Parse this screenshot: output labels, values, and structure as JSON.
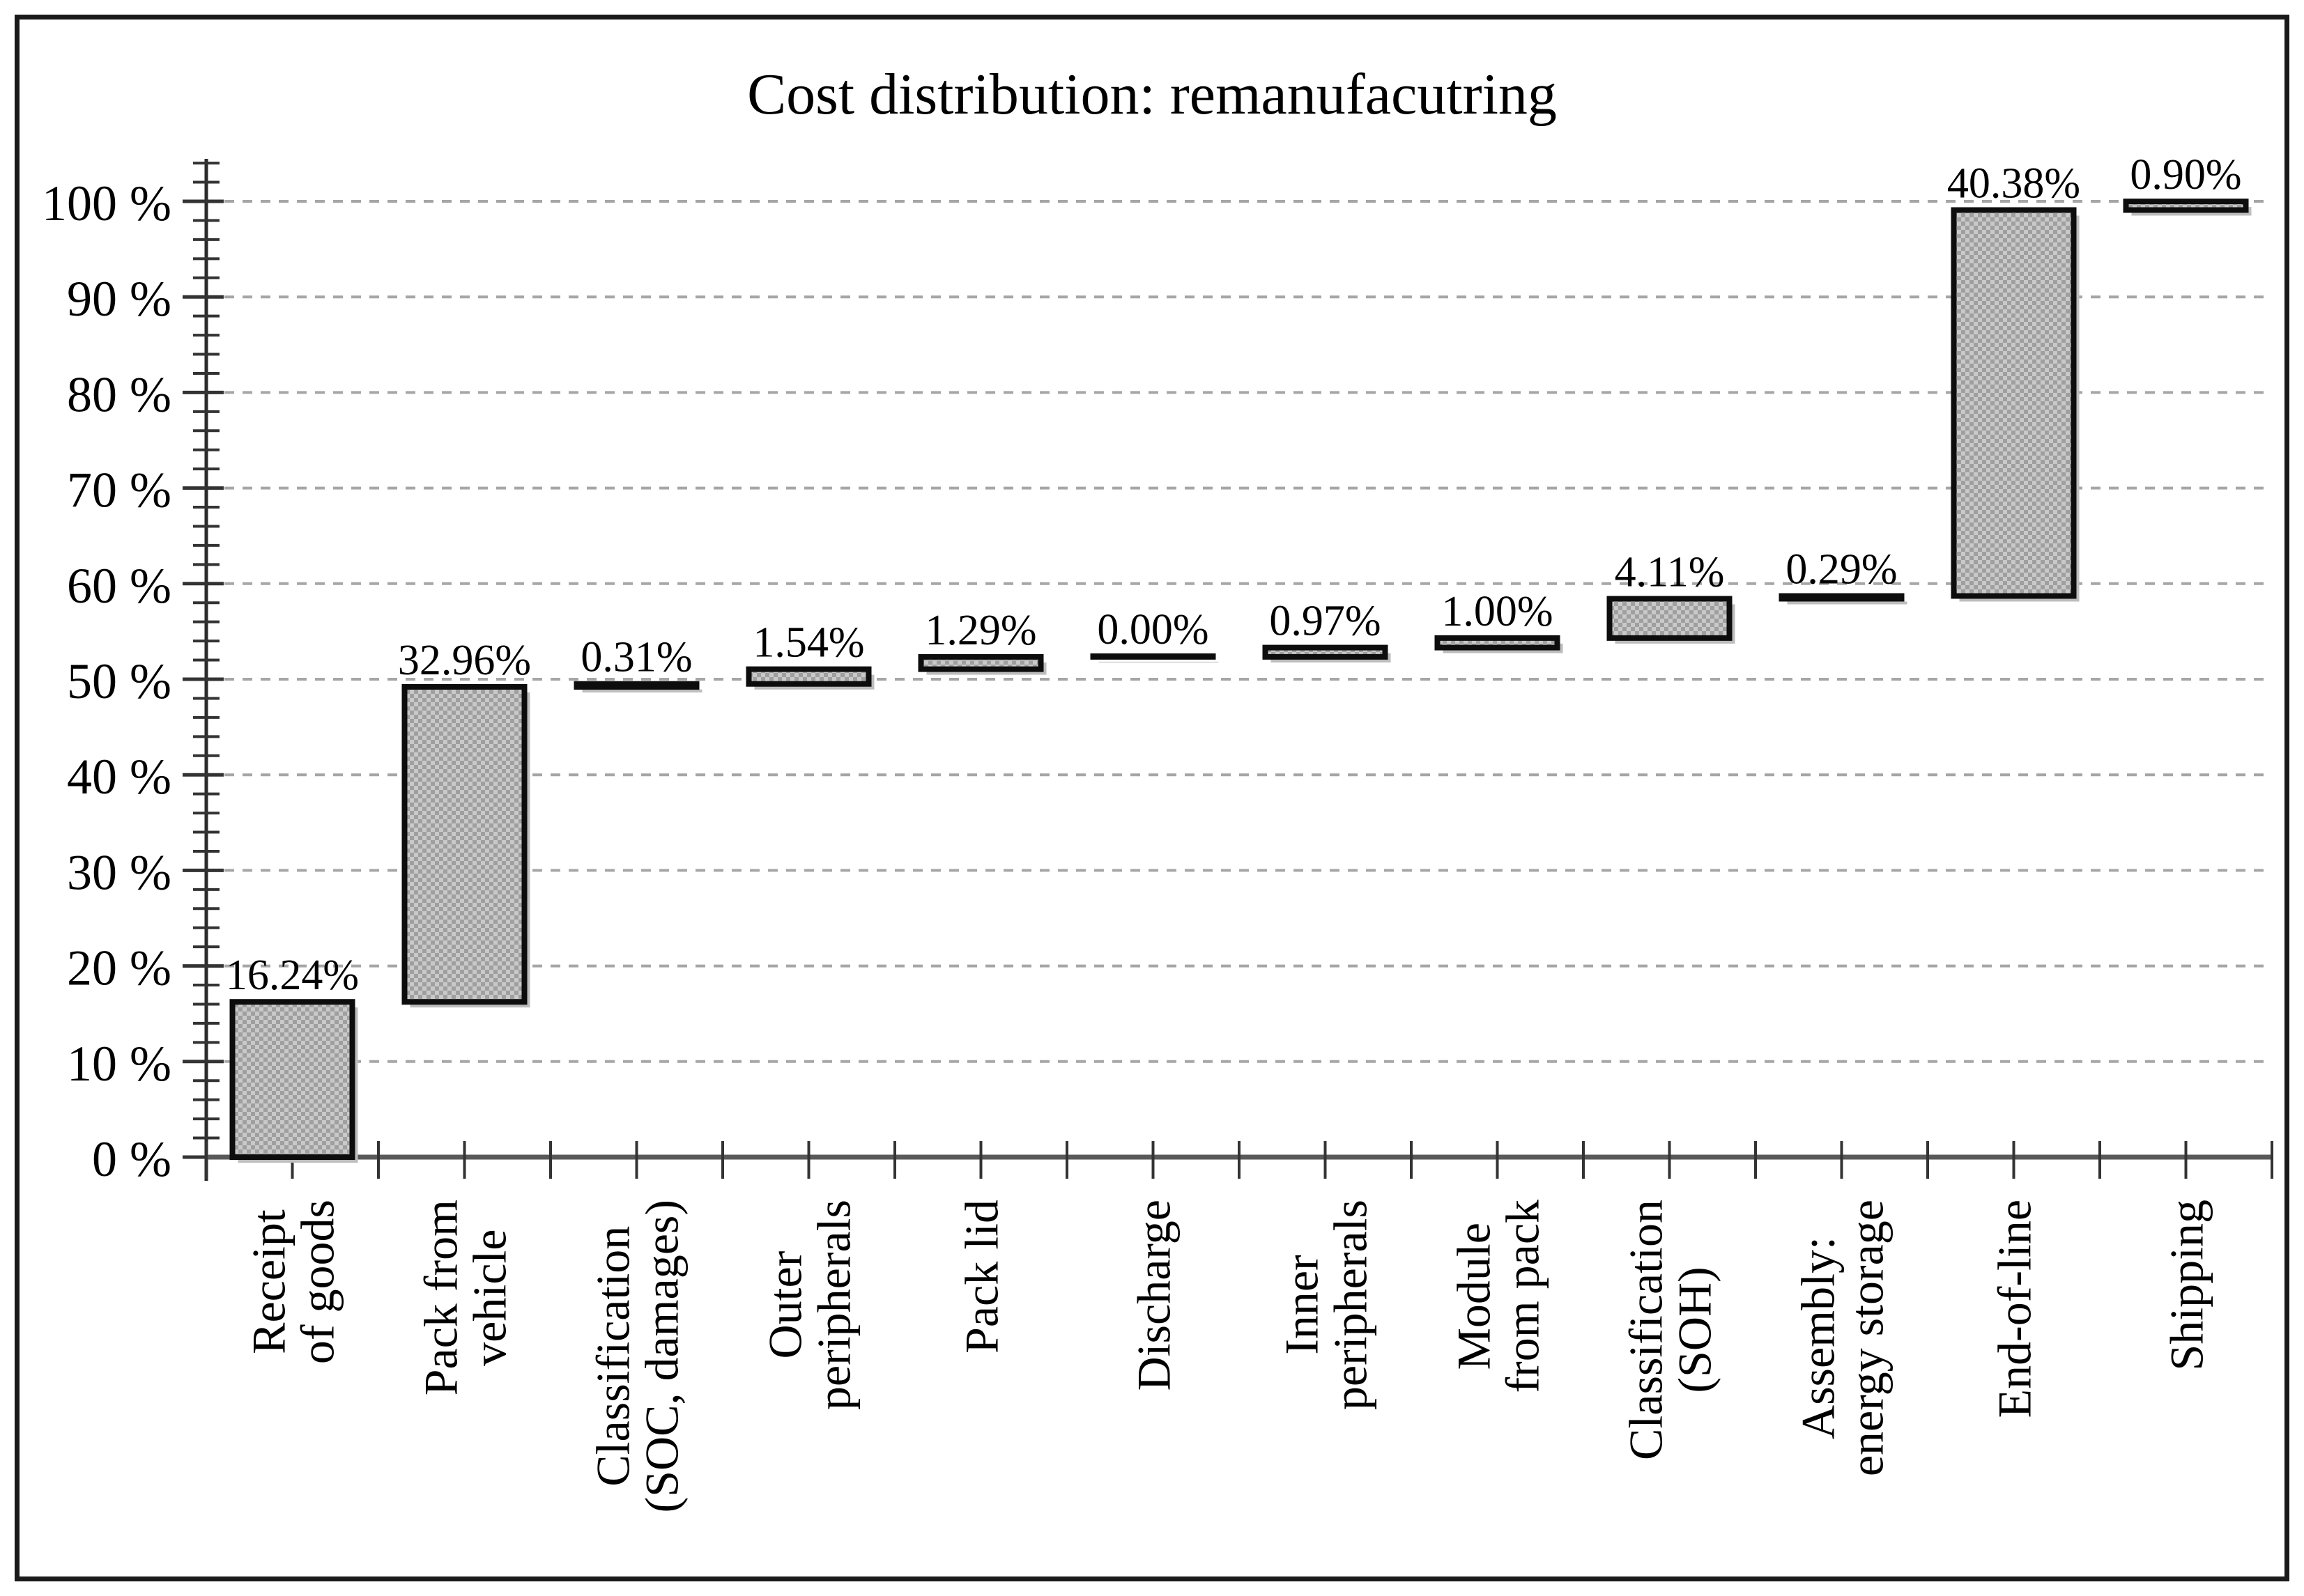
{
  "chart_data": {
    "type": "bar",
    "subtype": "waterfall",
    "title": "Cost distribution: remanufacutring",
    "ylabel": "",
    "xlabel": "",
    "ylim": [
      0,
      100
    ],
    "y_major_step": 10,
    "y_minor_step": 2,
    "y_tick_labels": [
      "0 %",
      "10 %",
      "20 %",
      "30 %",
      "40 %",
      "50 %",
      "60 %",
      "70 %",
      "80 %",
      "90 %",
      "100 %"
    ],
    "grid": "horizontal dashed at each 10%",
    "legend": "none",
    "bar_value_labels_shown": true,
    "categories": [
      {
        "label": "Receipt of goods",
        "lines": [
          "Receipt",
          "of goods"
        ],
        "value": 16.24,
        "display": "16.24%"
      },
      {
        "label": "Pack from vehicle",
        "lines": [
          "Pack from",
          "vehicle"
        ],
        "value": 32.96,
        "display": "32.96%"
      },
      {
        "label": "Classification (SOC, damages)",
        "lines": [
          "Classification",
          "(SOC, damages)"
        ],
        "value": 0.31,
        "display": "0.31%"
      },
      {
        "label": "Outer peripherals",
        "lines": [
          "Outer",
          "peripherals"
        ],
        "value": 1.54,
        "display": "1.54%"
      },
      {
        "label": "Pack lid",
        "lines": [
          "Pack lid"
        ],
        "value": 1.29,
        "display": "1.29%"
      },
      {
        "label": "Discharge",
        "lines": [
          "Discharge"
        ],
        "value": 0.0,
        "display": "0.00%"
      },
      {
        "label": "Inner peripherals",
        "lines": [
          "Inner",
          "peripherals"
        ],
        "value": 0.97,
        "display": "0.97%"
      },
      {
        "label": "Module from pack",
        "lines": [
          "Module",
          "from pack"
        ],
        "value": 1.0,
        "display": "1.00%"
      },
      {
        "label": "Classification (SOH)",
        "lines": [
          "Classification",
          "(SOH)"
        ],
        "value": 4.11,
        "display": "4.11%"
      },
      {
        "label": "Assembly: energy storage",
        "lines": [
          "Assembly:",
          "energy storage"
        ],
        "value": 0.29,
        "display": "0.29%"
      },
      {
        "label": "End-of-line",
        "lines": [
          "End-of-line"
        ],
        "value": 40.38,
        "display": "40.38%"
      },
      {
        "label": "Shipping",
        "lines": [
          "Shipping"
        ],
        "value": 0.9,
        "display": "0.90%"
      }
    ],
    "colors": {
      "bar_fill_light": "#c9c9c9",
      "bar_fill_dark": "#9f9f9f",
      "bar_border": "#0d0d0d",
      "bar_shadow": "#bdbdbd",
      "gridline": "#a6a6a6",
      "tick": "#333333",
      "y_axis": "#2b2b2b",
      "x_axis": "#595959",
      "frame": "#1a1a1a",
      "text": "#000000",
      "background": "#ffffff"
    }
  }
}
